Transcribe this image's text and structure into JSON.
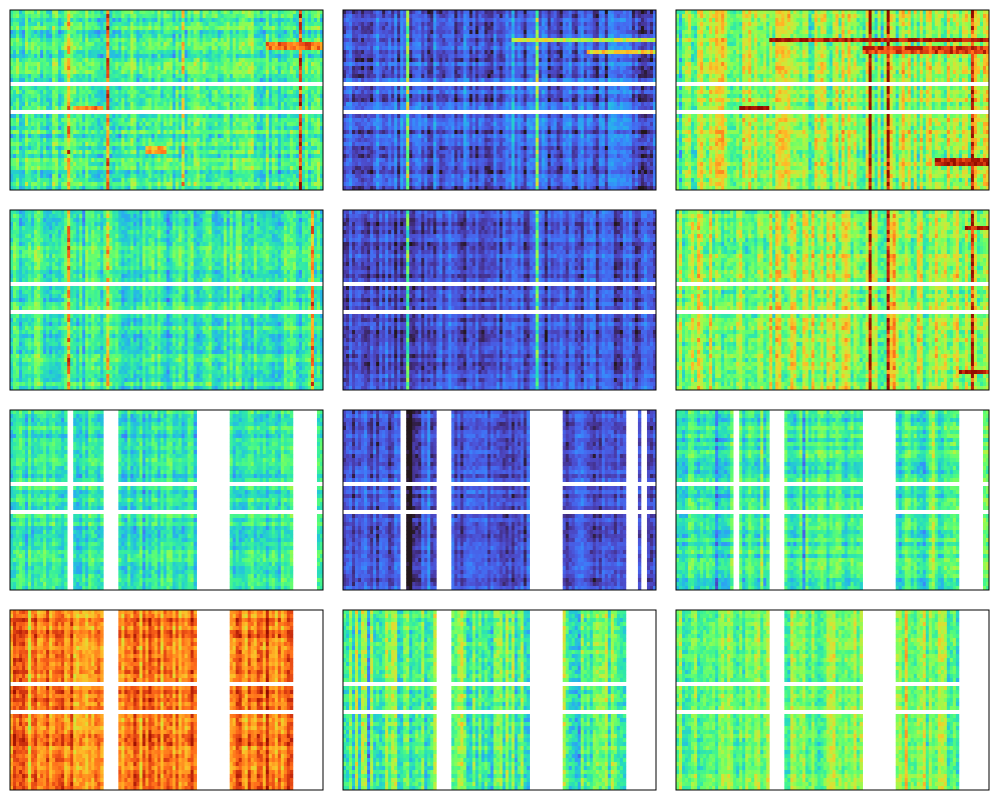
{
  "chart_data": [
    {
      "type": "heatmap",
      "row": 1,
      "col": 1,
      "colormap": "turbo",
      "base": 0.38,
      "variance": 0.16,
      "col_amp": 0.1,
      "row_amp": 0.07,
      "blank_rows": [
        0.42,
        0.57
      ],
      "blank_cols": [],
      "hot_rows": [
        {
          "r": 0.2,
          "x0": 0.82,
          "x1": 1.0,
          "v": 0.78
        },
        {
          "r": 0.55,
          "x0": 0.2,
          "x1": 0.3,
          "v": 0.75
        },
        {
          "r": 0.78,
          "x0": 0.43,
          "x1": 0.5,
          "v": 0.7
        }
      ],
      "hot_cols": [
        0.18,
        0.31,
        0.55,
        0.93
      ],
      "seed": 11
    },
    {
      "type": "heatmap",
      "row": 1,
      "col": 2,
      "colormap": "turbo",
      "base": 0.12,
      "variance": 0.07,
      "col_amp": 0.07,
      "row_amp": 0.04,
      "blank_rows": [
        0.42,
        0.57
      ],
      "blank_cols": [],
      "hot_rows": [
        {
          "r": 0.17,
          "x0": 0.54,
          "x1": 1.0,
          "v": 0.55
        },
        {
          "r": 0.23,
          "x0": 0.78,
          "x1": 1.0,
          "v": 0.62
        }
      ],
      "hot_cols": [
        0.2,
        0.62
      ],
      "seed": 23
    },
    {
      "type": "heatmap",
      "row": 1,
      "col": 3,
      "colormap": "turbo",
      "base": 0.5,
      "variance": 0.17,
      "col_amp": 0.14,
      "row_amp": 0.06,
      "blank_rows": [
        0.42,
        0.57
      ],
      "blank_cols": [],
      "hot_rows": [
        {
          "r": 0.17,
          "x0": 0.3,
          "x1": 1.0,
          "v": 0.92
        },
        {
          "r": 0.22,
          "x0": 0.6,
          "x1": 1.0,
          "v": 0.85
        },
        {
          "r": 0.55,
          "x0": 0.2,
          "x1": 0.3,
          "v": 0.95
        },
        {
          "r": 0.84,
          "x0": 0.83,
          "x1": 1.0,
          "v": 0.9
        }
      ],
      "hot_cols": [
        0.62,
        0.68,
        0.95
      ],
      "seed": 37
    },
    {
      "type": "heatmap",
      "row": 2,
      "col": 1,
      "colormap": "turbo",
      "base": 0.36,
      "variance": 0.13,
      "col_amp": 0.09,
      "row_amp": 0.06,
      "blank_rows": [
        0.42,
        0.57
      ],
      "blank_cols": [],
      "hot_rows": [],
      "hot_cols": [
        0.18,
        0.31,
        0.97
      ],
      "seed": 41
    },
    {
      "type": "heatmap",
      "row": 2,
      "col": 2,
      "colormap": "turbo",
      "base": 0.1,
      "variance": 0.06,
      "col_amp": 0.06,
      "row_amp": 0.03,
      "blank_rows": [
        0.42,
        0.57
      ],
      "blank_cols": [],
      "hot_rows": [],
      "hot_cols": [
        0.2,
        0.62
      ],
      "seed": 53
    },
    {
      "type": "heatmap",
      "row": 2,
      "col": 3,
      "colormap": "turbo",
      "base": 0.5,
      "variance": 0.16,
      "col_amp": 0.14,
      "row_amp": 0.06,
      "blank_rows": [
        0.42,
        0.57
      ],
      "blank_cols": [],
      "hot_rows": [
        {
          "r": 0.1,
          "x0": 0.92,
          "x1": 1.0,
          "v": 0.92
        },
        {
          "r": 0.9,
          "x0": 0.9,
          "x1": 1.0,
          "v": 0.92
        }
      ],
      "hot_cols": [
        0.62,
        0.68,
        0.95
      ],
      "seed": 67
    },
    {
      "type": "heatmap",
      "row": 3,
      "col": 1,
      "colormap": "turbo",
      "base": 0.34,
      "variance": 0.12,
      "col_amp": 0.08,
      "row_amp": 0.06,
      "blank_rows": [
        0.42,
        0.57
      ],
      "blank_cols": [
        [
          0.18,
          0.2
        ],
        [
          0.3,
          0.35
        ],
        [
          0.6,
          0.7
        ],
        [
          0.9,
          0.98
        ]
      ],
      "hot_rows": [],
      "hot_cols": [],
      "seed": 71
    },
    {
      "type": "heatmap",
      "row": 3,
      "col": 2,
      "colormap": "turbo",
      "base": 0.1,
      "variance": 0.06,
      "col_amp": 0.05,
      "row_amp": 0.03,
      "blank_rows": [
        0.42,
        0.57
      ],
      "blank_cols": [
        [
          0.18,
          0.2
        ],
        [
          0.3,
          0.35
        ],
        [
          0.6,
          0.7
        ],
        [
          0.9,
          0.94
        ],
        [
          0.95,
          0.97
        ]
      ],
      "hot_rows": [],
      "hot_cols": [],
      "seed": 83
    },
    {
      "type": "heatmap",
      "row": 3,
      "col": 3,
      "colormap": "turbo",
      "base": 0.36,
      "variance": 0.12,
      "col_amp": 0.09,
      "row_amp": 0.06,
      "blank_rows": [
        0.42,
        0.57
      ],
      "blank_cols": [
        [
          0.18,
          0.2
        ],
        [
          0.3,
          0.35
        ],
        [
          0.6,
          0.7
        ],
        [
          0.9,
          0.98
        ]
      ],
      "hot_rows": [],
      "hot_cols": [],
      "seed": 97
    },
    {
      "type": "heatmap",
      "row": 4,
      "col": 1,
      "colormap": "turbo",
      "base": 0.76,
      "variance": 0.12,
      "col_amp": 0.1,
      "row_amp": 0.05,
      "blank_rows": [
        0.42,
        0.57
      ],
      "blank_cols": [
        [
          0.3,
          0.35
        ],
        [
          0.6,
          0.7
        ],
        [
          0.9,
          1.0
        ]
      ],
      "hot_rows": [],
      "hot_cols": [],
      "seed": 101
    },
    {
      "type": "heatmap",
      "row": 4,
      "col": 2,
      "colormap": "turbo",
      "base": 0.42,
      "variance": 0.16,
      "col_amp": 0.14,
      "row_amp": 0.04,
      "blank_rows": [
        0.42,
        0.57
      ],
      "blank_cols": [
        [
          0.3,
          0.35
        ],
        [
          0.6,
          0.7
        ],
        [
          0.9,
          1.0
        ]
      ],
      "hot_rows": [],
      "hot_cols": [],
      "seed": 113
    },
    {
      "type": "heatmap",
      "row": 4,
      "col": 3,
      "colormap": "turbo",
      "base": 0.46,
      "variance": 0.14,
      "col_amp": 0.12,
      "row_amp": 0.04,
      "blank_rows": [
        0.42,
        0.57
      ],
      "blank_cols": [
        [
          0.3,
          0.35
        ],
        [
          0.6,
          0.7
        ],
        [
          0.9,
          1.0
        ]
      ],
      "hot_rows": [],
      "hot_cols": [],
      "seed": 127
    }
  ]
}
